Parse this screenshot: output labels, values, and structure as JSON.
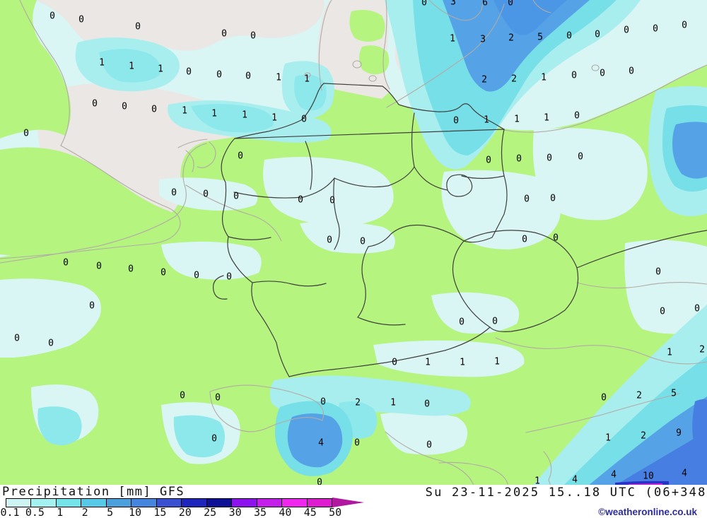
{
  "map": {
    "region": "Germany / Central Europe",
    "colors": {
      "base": "#d9f5f4",
      "sea_dry": "#eae7e5",
      "land": "#b5f47e",
      "c1": "#a9eeee",
      "c2": "#8de8ec",
      "c3": "#77dfe8",
      "c5": "#55a3e6",
      "c7": "#4b97e6",
      "c10": "#467ee2",
      "c20": "#2732c8",
      "c35": "#d81fd8",
      "border_light": "#b2aba6",
      "border_dark": "#3f3f3d"
    },
    "numbers": [
      [
        0,
        600,
        4
      ],
      [
        3,
        641,
        3
      ],
      [
        6,
        686,
        4
      ],
      [
        0,
        722,
        4
      ],
      [
        0,
        74,
        23
      ],
      [
        0,
        115,
        28
      ],
      [
        0,
        195,
        38
      ],
      [
        0,
        317,
        48
      ],
      [
        0,
        358,
        51
      ],
      [
        1,
        640,
        55
      ],
      [
        3,
        683,
        56
      ],
      [
        2,
        723,
        54
      ],
      [
        5,
        764,
        53
      ],
      [
        0,
        805,
        51
      ],
      [
        0,
        845,
        49
      ],
      [
        0,
        886,
        43
      ],
      [
        0,
        927,
        41
      ],
      [
        0,
        968,
        36
      ],
      [
        1,
        144,
        89
      ],
      [
        1,
        186,
        94
      ],
      [
        1,
        227,
        98
      ],
      [
        0,
        267,
        102
      ],
      [
        0,
        310,
        106
      ],
      [
        0,
        351,
        108
      ],
      [
        1,
        394,
        110
      ],
      [
        1,
        434,
        112
      ],
      [
        2,
        685,
        113
      ],
      [
        2,
        727,
        112
      ],
      [
        1,
        769,
        110
      ],
      [
        0,
        812,
        107
      ],
      [
        0,
        852,
        104
      ],
      [
        0,
        893,
        101
      ],
      [
        0,
        134,
        147
      ],
      [
        0,
        176,
        151
      ],
      [
        0,
        218,
        155
      ],
      [
        1,
        261,
        157
      ],
      [
        1,
        303,
        161
      ],
      [
        1,
        346,
        163
      ],
      [
        1,
        388,
        167
      ],
      [
        0,
        430,
        169
      ],
      [
        0,
        645,
        171
      ],
      [
        1,
        688,
        170
      ],
      [
        1,
        731,
        169
      ],
      [
        1,
        773,
        167
      ],
      [
        0,
        816,
        164
      ],
      [
        0,
        37,
        189
      ],
      [
        0,
        340,
        221
      ],
      [
        0,
        691,
        227
      ],
      [
        0,
        734,
        225
      ],
      [
        0,
        777,
        224
      ],
      [
        0,
        821,
        222
      ],
      [
        0,
        246,
        273
      ],
      [
        0,
        291,
        275
      ],
      [
        0,
        334,
        278
      ],
      [
        0,
        425,
        283
      ],
      [
        0,
        470,
        284
      ],
      [
        0,
        745,
        282
      ],
      [
        0,
        782,
        281
      ],
      [
        0,
        466,
        340
      ],
      [
        0,
        513,
        342
      ],
      [
        0,
        742,
        339
      ],
      [
        0,
        786,
        337
      ],
      [
        0,
        93,
        372
      ],
      [
        0,
        140,
        377
      ],
      [
        0,
        185,
        381
      ],
      [
        0,
        231,
        386
      ],
      [
        0,
        278,
        390
      ],
      [
        0,
        324,
        392
      ],
      [
        0,
        931,
        385
      ],
      [
        0,
        130,
        433
      ],
      [
        0,
        653,
        456
      ],
      [
        0,
        700,
        455
      ],
      [
        0,
        937,
        441
      ],
      [
        0,
        986,
        437
      ],
      [
        0,
        24,
        479
      ],
      [
        0,
        72,
        486
      ],
      [
        0,
        558,
        513
      ],
      [
        1,
        605,
        513
      ],
      [
        1,
        654,
        513
      ],
      [
        1,
        703,
        512
      ],
      [
        1,
        947,
        499
      ],
      [
        2,
        993,
        495
      ],
      [
        0,
        258,
        560
      ],
      [
        0,
        308,
        563
      ],
      [
        0,
        457,
        569
      ],
      [
        2,
        506,
        570
      ],
      [
        1,
        556,
        570
      ],
      [
        0,
        604,
        572
      ],
      [
        0,
        854,
        563
      ],
      [
        2,
        904,
        560
      ],
      [
        5,
        953,
        557
      ],
      [
        0,
        303,
        621
      ],
      [
        4,
        454,
        627
      ],
      [
        0,
        505,
        627
      ],
      [
        0,
        607,
        630
      ],
      [
        1,
        860,
        620
      ],
      [
        2,
        910,
        617
      ],
      [
        9,
        960,
        613
      ],
      [
        0,
        452,
        683
      ],
      [
        1,
        760,
        681
      ],
      [
        4,
        813,
        679
      ],
      [
        4,
        868,
        672
      ],
      [
        10,
        917,
        674
      ],
      [
        4,
        968,
        670
      ]
    ]
  },
  "legend": {
    "title": "Precipitation [mm] GFS",
    "unit": "mm",
    "labels": [
      "0.1",
      "0.5",
      "1",
      "2",
      "5",
      "10",
      "15",
      "20",
      "25",
      "30",
      "35",
      "40",
      "45",
      "50"
    ],
    "segment_colors": [
      "#cdf3f2",
      "#a3f1f1",
      "#74e3e9",
      "#57c8e5",
      "#4b9fda",
      "#4685dd",
      "#3950d0",
      "#1e25bd",
      "#0d1094",
      "#8d13ee",
      "#c41eeb",
      "#ee26ee",
      "#df1bd1"
    ],
    "arrow_color": "#b0189f"
  },
  "footer": {
    "datetime": "Su 23-11-2025 15..18 UTC (06+348)",
    "copyright": "©weatheronline.co.uk"
  }
}
